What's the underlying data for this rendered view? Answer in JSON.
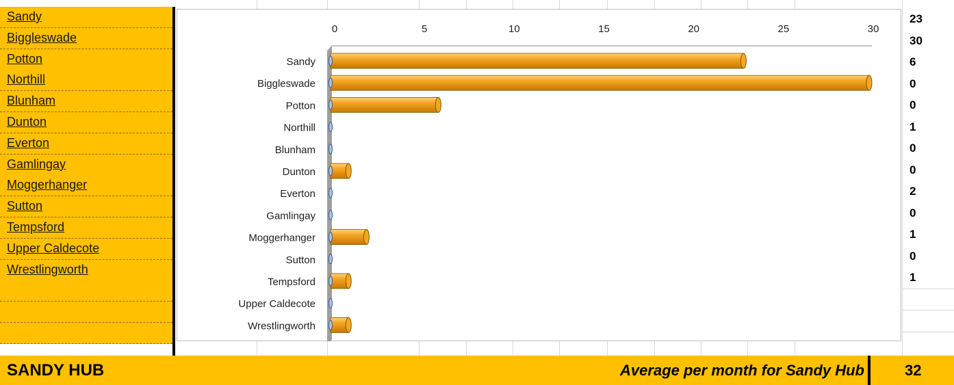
{
  "left_column": {
    "towns": [
      "Sandy",
      "Biggleswade",
      "Potton",
      "Northill",
      "Blunham",
      "Dunton",
      "Everton",
      "Gamlingay",
      "Moggerhanger",
      "Sutton",
      "Tempsford",
      "Upper Caldecote",
      "Wrestlingworth"
    ],
    "empty_rows": 3
  },
  "right_column": {
    "values": [
      "23",
      "30",
      "6",
      "0",
      "0",
      "1",
      "0",
      "0",
      "2",
      "0",
      "1",
      "0",
      "1"
    ]
  },
  "footer": {
    "hub_title": "SANDY HUB",
    "average_label": "Average per month for Sandy Hub",
    "average_value": "32"
  },
  "colors": {
    "band": "#FFC000",
    "bar_light": "#FFD27A",
    "bar_mid": "#F5A623",
    "bar_dark": "#C77800",
    "wall": "#9e9e9e"
  },
  "chart_data": {
    "type": "bar",
    "orientation": "horizontal",
    "title": "",
    "xlabel": "",
    "ylabel": "",
    "categories": [
      "Sandy",
      "Biggleswade",
      "Potton",
      "Northill",
      "Blunham",
      "Dunton",
      "Everton",
      "Gamlingay",
      "Moggerhanger",
      "Sutton",
      "Tempsford",
      "Upper Caldecote",
      "Wrestlingworth"
    ],
    "values": [
      23,
      30,
      6,
      0,
      0,
      1,
      0,
      0,
      2,
      0,
      1,
      0,
      1
    ],
    "xlim": [
      0,
      30
    ],
    "xticks": [
      0,
      5,
      10,
      15,
      20,
      25,
      30
    ],
    "xaxis_position": "top",
    "grid": false,
    "legend": "none",
    "style": "3d-cylinder"
  }
}
